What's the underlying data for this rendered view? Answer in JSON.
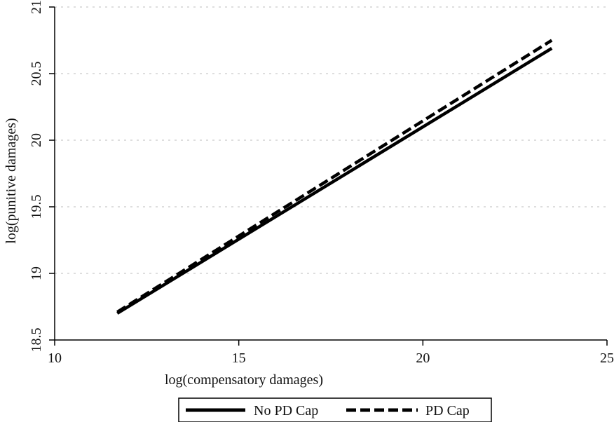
{
  "chart_data": {
    "type": "line",
    "title": "",
    "xlabel": "log(compensatory damages)",
    "ylabel": "log(punitive damages)",
    "xlim": [
      10,
      25
    ],
    "ylim": [
      18.5,
      21
    ],
    "xticks": [
      "10",
      "15",
      "20",
      "25"
    ],
    "yticks": [
      "18.5",
      "19",
      "19.5",
      "20",
      "20.5",
      "21"
    ],
    "grid": true,
    "legend_position": "bottom",
    "series": [
      {
        "name": "No PD Cap",
        "style": "solid",
        "color": "#000000",
        "x": [
          11.7,
          23.5
        ],
        "y": [
          18.7,
          20.69
        ]
      },
      {
        "name": "PD Cap",
        "style": "dashed",
        "color": "#000000",
        "x": [
          11.7,
          23.5
        ],
        "y": [
          18.71,
          20.75
        ]
      }
    ]
  }
}
